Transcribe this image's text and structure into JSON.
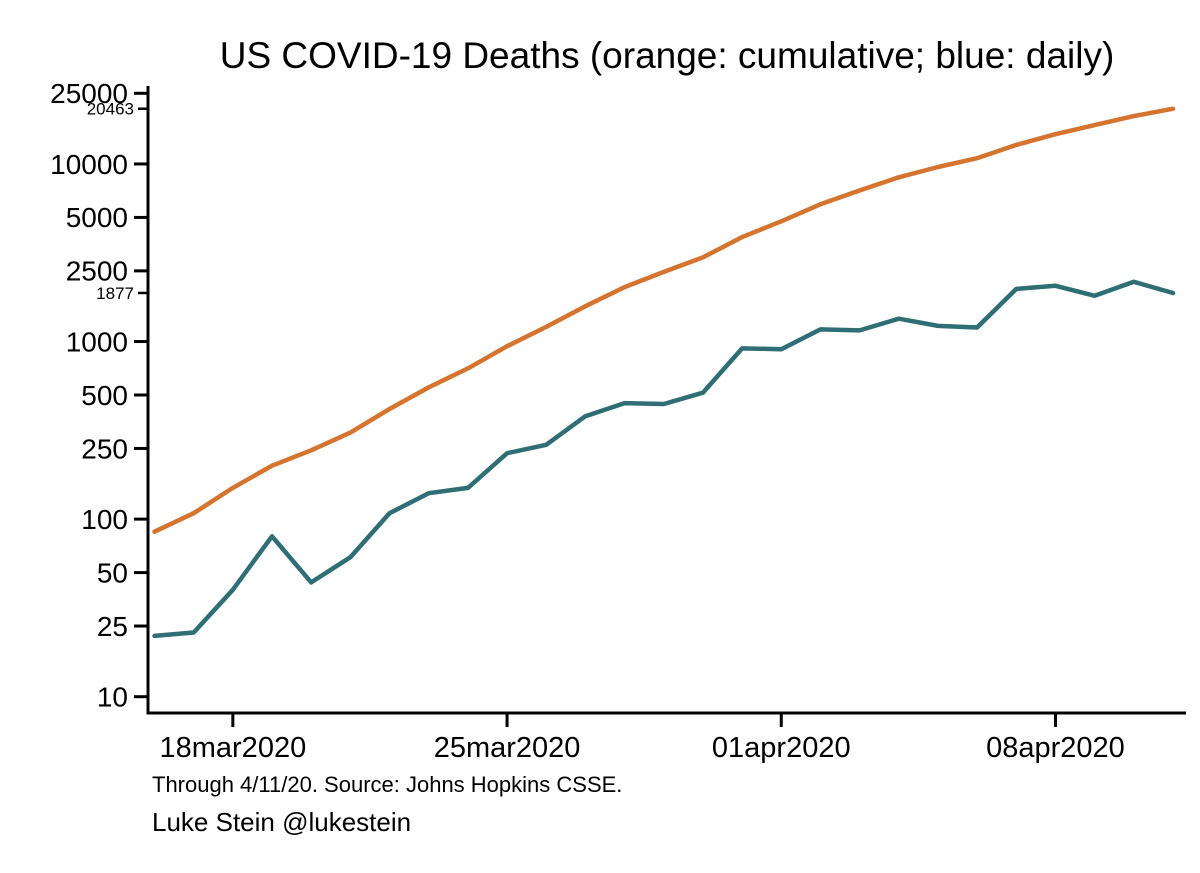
{
  "chart": {
    "title": "US COVID-19 Deaths (orange: cumulative; blue: daily)",
    "caption": "Through 4/11/20. Source: Johns Hopkins CSSE.",
    "attribution": "Luke Stein @lukestein",
    "colors": {
      "cumulative_line": "#d5742f",
      "daily_line": "#2e6e74",
      "axis": "#000000",
      "background": "#ffffff"
    }
  },
  "chart_data": {
    "type": "line",
    "yscale": "log",
    "ylim": [
      10,
      25000
    ],
    "grid": false,
    "legend": "none (series identified in title: orange = cumulative, blue = daily)",
    "x": [
      "16mar2020",
      "17mar2020",
      "18mar2020",
      "19mar2020",
      "20mar2020",
      "21mar2020",
      "22mar2020",
      "23mar2020",
      "24mar2020",
      "25mar2020",
      "26mar2020",
      "27mar2020",
      "28mar2020",
      "29mar2020",
      "30mar2020",
      "31mar2020",
      "01apr2020",
      "02apr2020",
      "03apr2020",
      "04apr2020",
      "05apr2020",
      "06apr2020",
      "07apr2020",
      "08apr2020",
      "09apr2020",
      "10apr2020",
      "11apr2020"
    ],
    "series": [
      {
        "name": "cumulative",
        "color": "#d5742f",
        "values": [
          85,
          108,
          150,
          200,
          244,
          307,
          417,
          552,
          706,
          942,
          1209,
          1581,
          2026,
          2467,
          2978,
          3873,
          4757,
          5926,
          7087,
          8407,
          9619,
          10783,
          12798,
          14704,
          16553,
          18595,
          20463
        ]
      },
      {
        "name": "daily",
        "color": "#2e6e74",
        "values": [
          22,
          23,
          40,
          80,
          44,
          61,
          108,
          140,
          150,
          235,
          262,
          380,
          450,
          445,
          515,
          915,
          905,
          1170,
          1155,
          1345,
          1225,
          1200,
          1980,
          2060,
          1810,
          2170,
          1877
        ]
      }
    ],
    "yticks": [
      25000,
      10000,
      5000,
      2500,
      1000,
      500,
      250,
      100,
      50,
      25,
      10
    ],
    "annotations": [
      {
        "series": "cumulative",
        "label": "20463",
        "value": 20463
      },
      {
        "series": "daily",
        "label": "1877",
        "value": 1877
      }
    ],
    "xtick_indices": [
      2,
      9,
      16,
      23
    ],
    "xtick_labels": [
      "18mar2020",
      "25mar2020",
      "01apr2020",
      "08apr2020"
    ]
  }
}
